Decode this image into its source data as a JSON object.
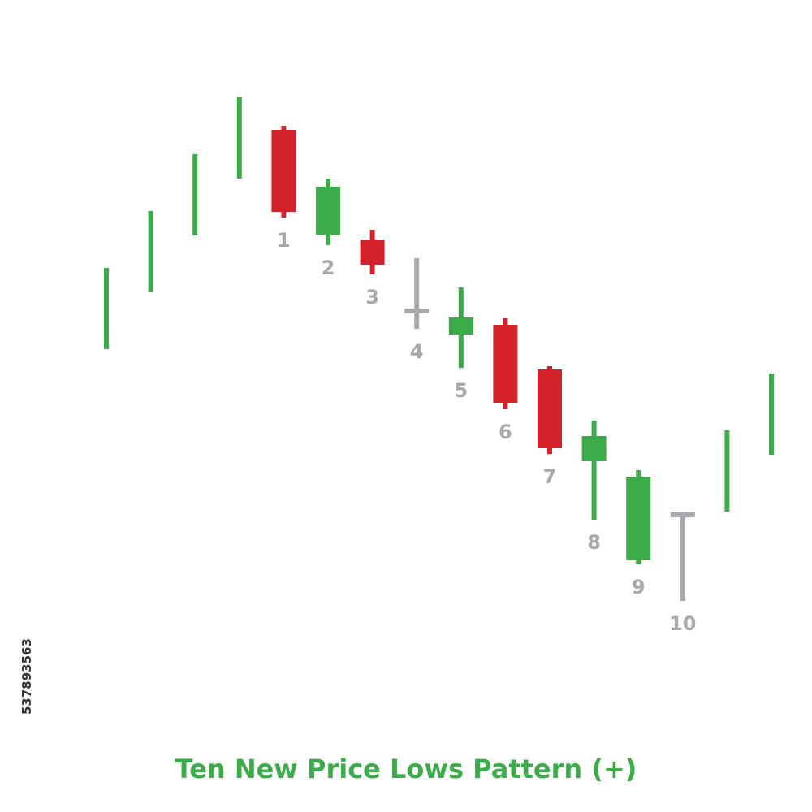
{
  "colors": {
    "bull": "#3cab4a",
    "bear": "#d3222a",
    "doji": "#a7a9ac",
    "label": "#a7a9ac",
    "title": "#3cab4a"
  },
  "chart_data": {
    "type": "candlestick",
    "title": "Ten New Price Lows Pattern (+)",
    "y_direction": "price",
    "candles": [
      {
        "kind": "bar",
        "color": "bull",
        "high": 67,
        "low": 57
      },
      {
        "kind": "bar",
        "color": "bull",
        "high": 74,
        "low": 64
      },
      {
        "kind": "bar",
        "color": "bull",
        "high": 81,
        "low": 71
      },
      {
        "kind": "bar",
        "color": "bull",
        "high": 88,
        "low": 78
      },
      {
        "label": "1",
        "kind": "candle",
        "color": "bear",
        "open": 84,
        "close": 73.9,
        "high": 84.5,
        "low": 73.2
      },
      {
        "label": "2",
        "kind": "candle",
        "color": "bull",
        "open": 71.1,
        "close": 77,
        "high": 78,
        "low": 69.8
      },
      {
        "label": "3",
        "kind": "candle",
        "color": "bear",
        "open": 70.5,
        "close": 67.4,
        "high": 71.7,
        "low": 66.2
      },
      {
        "label": "4",
        "kind": "doji",
        "color": "doji",
        "open": 61.7,
        "close": 61.7,
        "high": 68.2,
        "low": 59.5
      },
      {
        "label": "5",
        "kind": "candle",
        "color": "bull",
        "open": 58.8,
        "close": 60.9,
        "high": 64.6,
        "low": 54.7
      },
      {
        "label": "6",
        "kind": "candle",
        "color": "bear",
        "open": 60,
        "close": 50.4,
        "high": 60.8,
        "low": 49.6
      },
      {
        "label": "7",
        "kind": "candle",
        "color": "bear",
        "open": 54.5,
        "close": 44.8,
        "high": 54.9,
        "low": 44.1
      },
      {
        "label": "8",
        "kind": "candle",
        "color": "bull",
        "open": 43.2,
        "close": 46.3,
        "high": 48.2,
        "low": 36
      },
      {
        "label": "9",
        "kind": "candle",
        "color": "bull",
        "open": 31,
        "close": 41.3,
        "high": 42.1,
        "low": 30.5
      },
      {
        "label": "10",
        "kind": "gravestone",
        "color": "doji",
        "open": 36.6,
        "close": 36.6,
        "high": 36.6,
        "low": 26
      },
      {
        "kind": "bar",
        "color": "bull",
        "high": 47,
        "low": 37
      },
      {
        "kind": "bar",
        "color": "bull",
        "high": 54,
        "low": 44
      },
      {
        "kind": "bar",
        "color": "bull",
        "high": 61,
        "low": 51
      },
      {
        "kind": "bar",
        "color": "bull",
        "high": 68,
        "low": 58
      }
    ]
  },
  "watermark_id": "537893563"
}
